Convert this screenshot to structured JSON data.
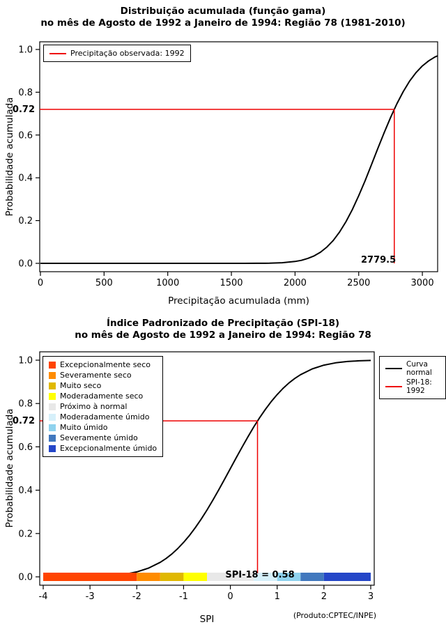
{
  "chart_data": [
    {
      "type": "line",
      "id": "gamma-cumulative-distribution",
      "title_line1": "Distribuição acumulada (função gama)",
      "title_line2": "no mês de Agosto de 1992 a Janeiro de 1994: Região 78 (1981-2010)",
      "xlabel": "Precipitação acumulada (mm)",
      "ylabel": "Probabilidade acumulada",
      "xlim": [
        0,
        3120
      ],
      "ylim": [
        0,
        1
      ],
      "grid": false,
      "x_ticks": [
        0,
        500,
        1000,
        1500,
        2000,
        2500,
        3000
      ],
      "x_tick_labels": [
        "0",
        "500",
        "1000",
        "1500",
        "2000",
        "2500",
        "3000"
      ],
      "y_ticks": [
        0,
        0.2,
        0.4,
        0.6,
        0.8,
        1
      ],
      "y_tick_labels": [
        "0.0",
        "0.2",
        "0.4",
        "0.6",
        "0.8",
        "1.0"
      ],
      "legend": [
        {
          "label": "Precipitação observada: 1992",
          "color": "#ee0000"
        }
      ],
      "legend_position": "top-left",
      "marker": {
        "x": 2779.5,
        "y": 0.72,
        "x_label": "2779.5",
        "y_label": "0.72",
        "color": "#ee0000"
      },
      "curve": {
        "name": "gamma-cdf-curve",
        "color": "#000000",
        "x": [
          0,
          300,
          600,
          900,
          1200,
          1400,
          1600,
          1700,
          1800,
          1900,
          2000,
          2050,
          2100,
          2150,
          2200,
          2250,
          2300,
          2350,
          2400,
          2450,
          2500,
          2550,
          2600,
          2650,
          2700,
          2750,
          2779.5,
          2800,
          2850,
          2900,
          2950,
          3000,
          3050,
          3100,
          3120
        ],
        "y": [
          0,
          0,
          0,
          0,
          0,
          0.0001,
          0.0001,
          0.0002,
          0.0008,
          0.0028,
          0.0087,
          0.0141,
          0.023,
          0.0349,
          0.052,
          0.0761,
          0.107,
          0.1466,
          0.195,
          0.2514,
          0.316,
          0.3859,
          0.461,
          0.5364,
          0.611,
          0.6815,
          0.72,
          0.746,
          0.8032,
          0.852,
          0.8914,
          0.923,
          0.9468,
          0.965,
          0.97
        ]
      }
    },
    {
      "type": "line",
      "id": "spi-18-normal-distribution",
      "title_line1": "Índice Padronizado de Precipitação (SPI-18)",
      "title_line2": "no mês de Agosto de 1992 a Janeiro de 1994: Região 78",
      "xlabel": "SPI",
      "ylabel": "Probabilidade acumulada",
      "xlim": [
        -4,
        3
      ],
      "ylim": [
        0,
        1
      ],
      "grid": false,
      "x_ticks": [
        -4,
        -3,
        -2,
        -1,
        0,
        1,
        2,
        3
      ],
      "x_tick_labels": [
        "-4",
        "-3",
        "-2",
        "-1",
        "0",
        "1",
        "2",
        "3"
      ],
      "y_ticks": [
        0,
        0.2,
        0.4,
        0.6,
        0.8,
        1
      ],
      "y_tick_labels": [
        "0.0",
        "0.2",
        "0.4",
        "0.6",
        "0.8",
        "1.0"
      ],
      "categories": [
        {
          "label": "Excepcionalmente seco",
          "color": "#ff4400",
          "range": [
            -4,
            -2
          ]
        },
        {
          "label": "Severamente seco",
          "color": "#ff8c00",
          "range": [
            -2,
            -1.5
          ]
        },
        {
          "label": "Muito seco",
          "color": "#e0b800",
          "range": [
            -1.5,
            -1
          ]
        },
        {
          "label": "Moderadamente seco",
          "color": "#ffff00",
          "range": [
            -1,
            -0.5
          ]
        },
        {
          "label": "Próximo à normal",
          "color": "#e8e8e8",
          "range": [
            -0.5,
            0.5
          ]
        },
        {
          "label": "Moderadamente úmido",
          "color": "#d6f0fa",
          "range": [
            0.5,
            1
          ]
        },
        {
          "label": "Muito úmido",
          "color": "#8fd2ee",
          "range": [
            1,
            1.5
          ]
        },
        {
          "label": "Severamente úmido",
          "color": "#4178be",
          "range": [
            1.5,
            2
          ]
        },
        {
          "label": "Excepcionalmente úmido",
          "color": "#2446c8",
          "range": [
            2,
            3
          ]
        }
      ],
      "right_legend": [
        {
          "label": "Curva\nnormal",
          "color": "#000000"
        },
        {
          "label": "SPI-18: 1992",
          "color": "#ee0000"
        }
      ],
      "marker": {
        "x": 0.58,
        "y": 0.72,
        "x_label": "SPI-18 = 0.58",
        "y_label": "0.72",
        "color": "#ee0000"
      },
      "footnote": "(Produto:CPTEC/INPE)",
      "curve": {
        "name": "normal-cdf-curve",
        "color": "#000000",
        "x": [
          -4,
          -3.75,
          -3.5,
          -3.25,
          -3,
          -2.75,
          -2.5,
          -2.25,
          -2,
          -1.75,
          -1.5,
          -1.375,
          -1.25,
          -1.125,
          -1,
          -0.875,
          -0.75,
          -0.625,
          -0.5,
          -0.375,
          -0.25,
          -0.125,
          0,
          0.125,
          0.25,
          0.375,
          0.5,
          0.625,
          0.75,
          0.875,
          1,
          1.125,
          1.25,
          1.375,
          1.5,
          1.75,
          2,
          2.25,
          2.5,
          2.75,
          3
        ],
        "y": [
          0,
          0.0001,
          0.0002,
          0.0006,
          0.0013,
          0.003,
          0.0062,
          0.0122,
          0.0228,
          0.0401,
          0.0668,
          0.0846,
          0.1056,
          0.1303,
          0.1587,
          0.1908,
          0.2266,
          0.266,
          0.3085,
          0.3538,
          0.4013,
          0.4503,
          0.5,
          0.5497,
          0.5987,
          0.6462,
          0.6915,
          0.734,
          0.7734,
          0.8092,
          0.8413,
          0.8697,
          0.8944,
          0.9154,
          0.9332,
          0.9599,
          0.9772,
          0.9878,
          0.9938,
          0.997,
          0.9987
        ]
      }
    }
  ]
}
